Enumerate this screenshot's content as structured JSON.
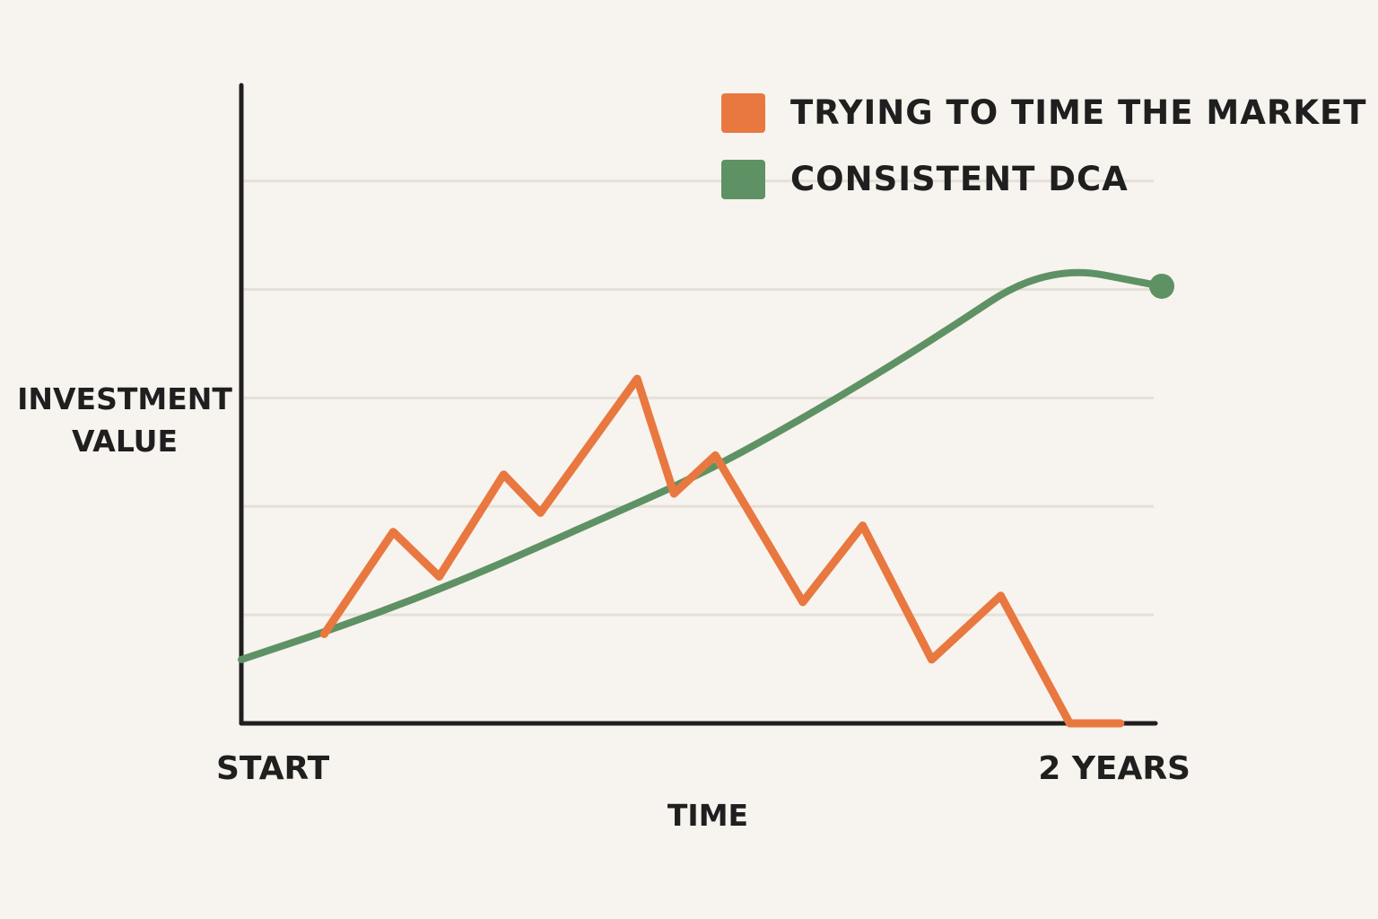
{
  "chart_data": {
    "type": "line",
    "title": "",
    "xlabel": "TIME",
    "ylabel_lines": [
      "INVESTMENT",
      "VALUE"
    ],
    "x_tick_labels": [
      "START",
      "2 YEARS"
    ],
    "x_range": [
      0,
      2
    ],
    "ylim": [
      0,
      100
    ],
    "grid": "horizontal",
    "gridlines_y": [
      17,
      34,
      51,
      68,
      85
    ],
    "legend_position": "top-right",
    "series": [
      {
        "name": "TRYING TO TIME THE MARKET",
        "color": "#e8783f",
        "x": [
          0.18,
          0.33,
          0.43,
          0.57,
          0.65,
          0.86,
          0.94,
          1.03,
          1.22,
          1.35,
          1.5,
          1.65,
          1.8,
          1.91
        ],
        "y": [
          14,
          30,
          23,
          39,
          33,
          54,
          36,
          42,
          19,
          31,
          10,
          20,
          0,
          0
        ]
      },
      {
        "name": "CONSISTENT DCA",
        "color": "#5e9264",
        "x": [
          0,
          0.25,
          0.5,
          0.75,
          1.0,
          1.25,
          1.5,
          1.75,
          2.0
        ],
        "y": [
          10,
          16,
          23,
          31,
          39,
          49,
          60,
          72,
          68.5
        ],
        "end_marker": true
      }
    ]
  }
}
